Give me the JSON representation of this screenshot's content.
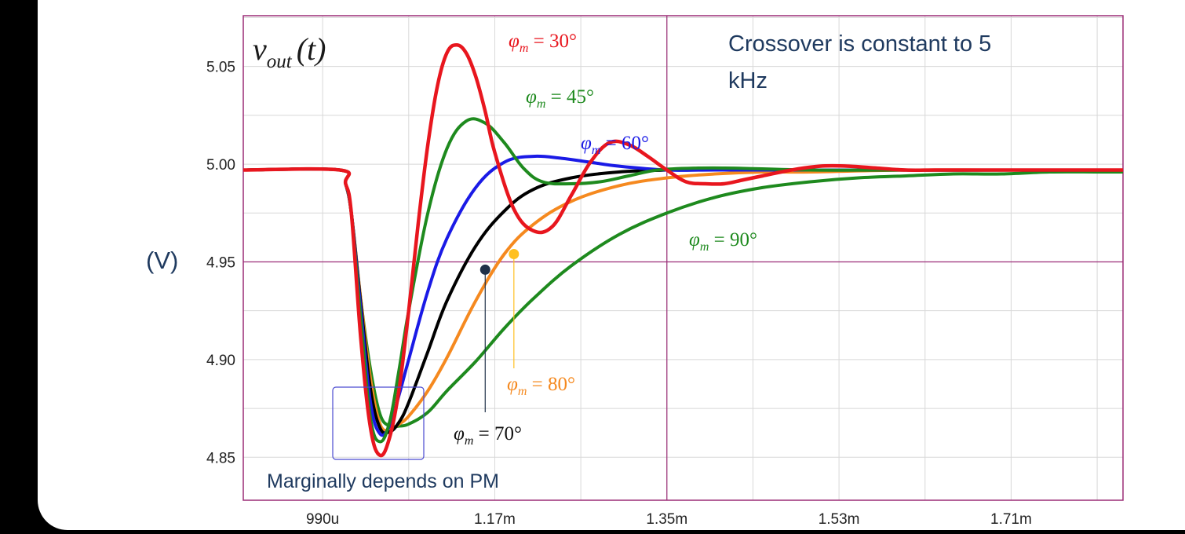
{
  "chart_data": {
    "type": "line",
    "title": "v_out(t)",
    "title_main": "v",
    "title_sub": "out",
    "title_arg": "(t)",
    "ylabel": "(V)",
    "xlabel": "",
    "xlim": [
      0.000907,
      0.001827
    ],
    "ylim": [
      4.828,
      5.076
    ],
    "grid": true,
    "x_ticks": [
      {
        "value": 0.00099,
        "label": "990u"
      },
      {
        "value": 0.00117,
        "label": "1.17m"
      },
      {
        "value": 0.00135,
        "label": "1.35m"
      },
      {
        "value": 0.00153,
        "label": "1.53m"
      },
      {
        "value": 0.00171,
        "label": "1.71m"
      }
    ],
    "y_ticks": [
      {
        "value": 4.85,
        "label": "4.85"
      },
      {
        "value": 4.9,
        "label": "4.90"
      },
      {
        "value": 4.95,
        "label": "4.95"
      },
      {
        "value": 5.0,
        "label": "5.00"
      },
      {
        "value": 5.05,
        "label": "5.05"
      }
    ],
    "series": [
      {
        "name": "φm = 90°",
        "phi": "φ",
        "sub": "m",
        "eq": " = 90°",
        "color": "#1e8a1e",
        "x": [
          0.000907,
          0.001008,
          0.001014,
          0.00102,
          0.00103,
          0.00104,
          0.00105,
          0.00106,
          0.00107,
          0.00108,
          0.0011,
          0.00112,
          0.00115,
          0.00118,
          0.00121,
          0.00125,
          0.0013,
          0.00135,
          0.0014,
          0.00145,
          0.0015,
          0.00155,
          0.0016,
          0.00165,
          0.0017,
          0.00175,
          0.0018,
          0.001827
        ],
        "y": [
          4.997,
          4.997,
          4.99,
          4.975,
          4.93,
          4.895,
          4.872,
          4.866,
          4.866,
          4.867,
          4.873,
          4.884,
          4.899,
          4.916,
          4.931,
          4.948,
          4.964,
          4.975,
          4.983,
          4.988,
          4.991,
          4.993,
          4.994,
          4.995,
          4.995,
          4.996,
          4.996,
          4.996
        ]
      },
      {
        "name": "φm = 80°",
        "phi": "φ",
        "sub": "m",
        "eq": " = 80°",
        "color": "#f5891f",
        "x": [
          0.000907,
          0.001008,
          0.001014,
          0.00102,
          0.00103,
          0.00104,
          0.00105,
          0.00106,
          0.00107,
          0.00108,
          0.0011,
          0.00112,
          0.00115,
          0.00118,
          0.00121,
          0.00125,
          0.0013,
          0.00135,
          0.0014,
          0.00145,
          0.0015,
          0.0016,
          0.0017,
          0.001827
        ],
        "y": [
          4.997,
          4.997,
          4.99,
          4.975,
          4.93,
          4.89,
          4.867,
          4.864,
          4.867,
          4.871,
          4.884,
          4.901,
          4.93,
          4.954,
          4.969,
          4.981,
          4.989,
          4.993,
          4.995,
          4.996,
          4.996,
          4.997,
          4.997,
          4.997
        ]
      },
      {
        "name": "φm = 70°",
        "phi": "φ",
        "sub": "m",
        "eq": " = 70°",
        "color": "#000000",
        "x": [
          0.000907,
          0.001008,
          0.001014,
          0.00102,
          0.00103,
          0.00104,
          0.00105,
          0.00106,
          0.00107,
          0.00108,
          0.0011,
          0.00112,
          0.00115,
          0.00118,
          0.00121,
          0.00125,
          0.0013,
          0.00135,
          0.0014,
          0.0015,
          0.001827
        ],
        "y": [
          4.997,
          4.997,
          4.99,
          4.975,
          4.928,
          4.885,
          4.865,
          4.863,
          4.868,
          4.878,
          4.904,
          4.93,
          4.958,
          4.976,
          4.987,
          4.993,
          4.996,
          4.997,
          4.998,
          4.997,
          4.997
        ]
      },
      {
        "name": "φm = 60°",
        "phi": "φ",
        "sub": "m",
        "eq": " = 60°",
        "color": "#1a1ae6",
        "x": [
          0.000907,
          0.001008,
          0.001014,
          0.00102,
          0.00103,
          0.00104,
          0.00105,
          0.00106,
          0.00107,
          0.00108,
          0.0011,
          0.00112,
          0.00115,
          0.00118,
          0.00121,
          0.00124,
          0.00127,
          0.0013,
          0.00135,
          0.0014,
          0.0015,
          0.001827
        ],
        "y": [
          4.997,
          4.997,
          4.99,
          4.975,
          4.925,
          4.878,
          4.862,
          4.866,
          4.882,
          4.9,
          4.935,
          4.962,
          4.988,
          5.001,
          5.004,
          5.003,
          5.001,
          4.999,
          4.997,
          4.997,
          4.997,
          4.997
        ]
      },
      {
        "name": "φm = 45°",
        "phi": "φ",
        "sub": "m",
        "eq": " = 45°",
        "color": "#1e8a1e",
        "x": [
          0.000907,
          0.001008,
          0.001014,
          0.00102,
          0.00103,
          0.00104,
          0.00105,
          0.00106,
          0.00107,
          0.00108,
          0.0011,
          0.00112,
          0.00114,
          0.00116,
          0.00118,
          0.0012,
          0.00122,
          0.00125,
          0.00128,
          0.00131,
          0.00134,
          0.00138,
          0.00142,
          0.0015,
          0.0016,
          0.001827
        ],
        "y": [
          4.997,
          4.997,
          4.99,
          4.975,
          4.92,
          4.87,
          4.858,
          4.868,
          4.895,
          4.925,
          4.975,
          5.008,
          5.022,
          5.021,
          5.011,
          4.998,
          4.991,
          4.99,
          4.991,
          4.994,
          4.997,
          4.998,
          4.998,
          4.997,
          4.997,
          4.997
        ]
      },
      {
        "name": "φm = 30°",
        "phi": "φ",
        "sub": "m",
        "eq": " = 30°",
        "color": "#e8161e",
        "x": [
          0.000907,
          0.001008,
          0.001014,
          0.00102,
          0.00103,
          0.00104,
          0.00105,
          0.00106,
          0.00107,
          0.00108,
          0.00109,
          0.0011,
          0.00111,
          0.00112,
          0.00113,
          0.00114,
          0.00115,
          0.00116,
          0.00117,
          0.00119,
          0.00121,
          0.00123,
          0.00125,
          0.00127,
          0.00129,
          0.00131,
          0.00133,
          0.00135,
          0.00137,
          0.00139,
          0.00141,
          0.00143,
          0.00145,
          0.00148,
          0.00151,
          0.00154,
          0.00157,
          0.0016,
          0.00163,
          0.00166,
          0.0017,
          0.00175,
          0.001827
        ],
        "y": [
          4.997,
          4.997,
          4.99,
          4.975,
          4.91,
          4.865,
          4.851,
          4.86,
          4.885,
          4.925,
          4.97,
          5.01,
          5.04,
          5.057,
          5.061,
          5.057,
          5.045,
          5.027,
          5.006,
          4.977,
          4.966,
          4.968,
          4.984,
          5.001,
          5.011,
          5.01,
          5.004,
          4.997,
          4.991,
          4.99,
          4.99,
          4.992,
          4.994,
          4.997,
          4.999,
          4.999,
          4.998,
          4.997,
          4.997,
          4.997,
          4.997,
          4.997,
          4.997
        ]
      }
    ],
    "markers": [
      {
        "series": "φm = 70°",
        "x": 0.00116,
        "y": 4.946,
        "color": "#1f3048"
      },
      {
        "series": "φm = 80°",
        "x": 0.00119,
        "y": 4.954,
        "color": "#ffc020"
      }
    ],
    "annotations": {
      "crossover": "Crossover is constant to 5 kHz",
      "crossover_line1": "Crossover is constant to 5",
      "crossover_line2": "kHz",
      "marginal": "Marginally depends on PM"
    }
  }
}
